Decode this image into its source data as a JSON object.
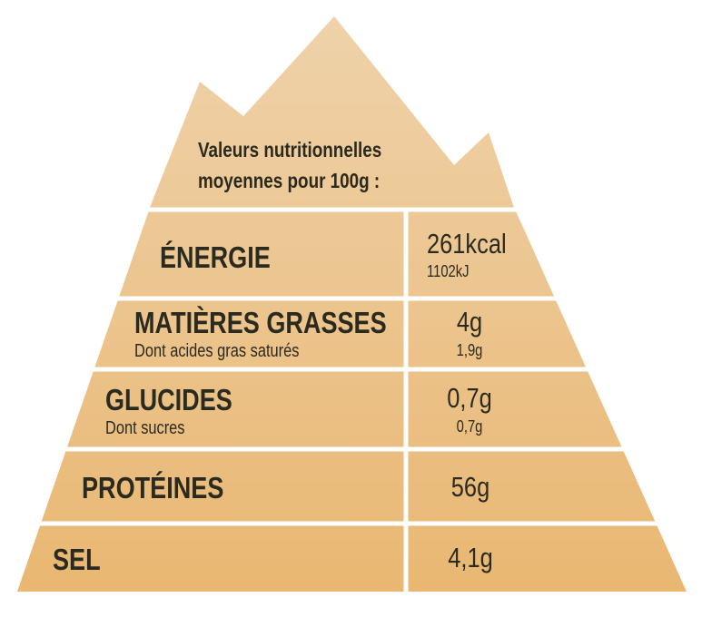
{
  "title_line1": "Valeurs nutritionnelles",
  "title_line2": "moyennes pour 100g :",
  "rows": [
    {
      "label": "ÉNERGIE",
      "value": "261kcal",
      "value_sub": "1102kJ"
    },
    {
      "label": "MATIÈRES GRASSES",
      "sublabel": "Dont acides gras saturés",
      "value": "4g",
      "value_sub": "1,9g"
    },
    {
      "label": "GLUCIDES",
      "sublabel": "Dont sucres",
      "value": "0,7g",
      "value_sub": "0,7g"
    },
    {
      "label": "PROTÉINES",
      "value": "56g"
    },
    {
      "label": "SEL",
      "value": "4,1g"
    }
  ],
  "colors": {
    "top": "#efd2aa",
    "bottom": "#e9b772",
    "text": "#2b2a1e",
    "divider": "#ffffff"
  }
}
